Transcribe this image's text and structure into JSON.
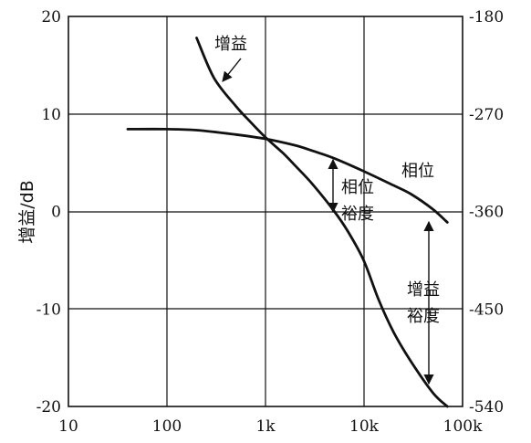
{
  "chart_data": {
    "type": "line",
    "title": "",
    "xlabel": "",
    "ylabel": "增益/dB",
    "x_scale": "log",
    "xlim": [
      10,
      100000
    ],
    "ylim": [
      -20,
      20
    ],
    "ylim_right": [
      -540,
      -180
    ],
    "grid": true,
    "x_ticks": [
      {
        "value": 10,
        "label": "10"
      },
      {
        "value": 100,
        "label": "100"
      },
      {
        "value": 1000,
        "label": "1k"
      },
      {
        "value": 10000,
        "label": "10k"
      },
      {
        "value": 100000,
        "label": "100k"
      }
    ],
    "y_ticks": [
      {
        "value": 20,
        "label": "20"
      },
      {
        "value": 10,
        "label": "10"
      },
      {
        "value": 0,
        "label": "0"
      },
      {
        "value": -10,
        "label": "-10"
      },
      {
        "value": -20,
        "label": "-20"
      }
    ],
    "y_right_ticks": [
      {
        "value": -180,
        "label": "-180"
      },
      {
        "value": -270,
        "label": "-270"
      },
      {
        "value": -360,
        "label": "-360"
      },
      {
        "value": -450,
        "label": "-450"
      },
      {
        "value": -540,
        "label": "-540"
      }
    ],
    "series": [
      {
        "name": "增益",
        "axis": "left",
        "x": [
          200,
          300,
          500,
          700,
          1000,
          1500,
          2000,
          3000,
          5000,
          7000,
          10000,
          14000,
          20000,
          30000,
          50000,
          70000
        ],
        "y": [
          17.8,
          13.7,
          10.8,
          9.2,
          7.6,
          6.0,
          4.7,
          2.8,
          0.0,
          -2.2,
          -5.1,
          -9.0,
          -12.4,
          -15.4,
          -18.6,
          -20.0
        ]
      },
      {
        "name": "相位",
        "axis": "right",
        "x": [
          40,
          100,
          200,
          500,
          1000,
          2000,
          3000,
          5000,
          10000,
          20000,
          30000,
          50000,
          70000
        ],
        "y": [
          -284,
          -284,
          -285,
          -289,
          -293,
          -299,
          -304,
          -311,
          -323,
          -336,
          -344,
          -358,
          -370
        ]
      }
    ],
    "annotations": [
      {
        "text": "增益"
      },
      {
        "text": "相位"
      },
      {
        "text": "相位",
        "text2": "裕度"
      },
      {
        "text": "增益",
        "text2": "裕度"
      }
    ]
  }
}
